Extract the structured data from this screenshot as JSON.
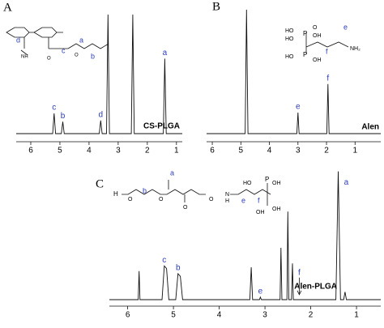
{
  "chart_data": [
    {
      "type": "line",
      "panel": "A",
      "sample": "CS-PLGA",
      "x": [
        6.5,
        5.25,
        5.2,
        5.15,
        4.95,
        4.9,
        4.85,
        3.65,
        3.6,
        3.55,
        3.4,
        3.35,
        3.3,
        2.55,
        2.5,
        2.45,
        1.45,
        1.4,
        1.35,
        0.8
      ],
      "values": [
        0,
        0,
        17,
        0,
        0,
        10,
        0,
        0,
        11,
        0,
        0,
        100,
        0,
        0,
        100,
        0,
        0,
        63,
        0,
        0
      ],
      "color": "#111111",
      "xlim": [
        6.5,
        0.8
      ],
      "ylim": [
        0,
        100
      ],
      "xticks": [
        6,
        5,
        4,
        3,
        2,
        1
      ],
      "annotations": [
        {
          "text": "c",
          "x": 5.2,
          "y": 17
        },
        {
          "text": "b",
          "x": 4.9,
          "y": 10
        },
        {
          "text": "d",
          "x": 3.6,
          "y": 11
        },
        {
          "text": "a",
          "x": 1.4,
          "y": 63
        }
      ],
      "structure_labels": [
        "d",
        "c",
        "b",
        "a",
        "NH",
        "O",
        "O"
      ]
    },
    {
      "type": "line",
      "panel": "B",
      "sample": "Alen",
      "x": [
        6.2,
        4.85,
        4.8,
        4.75,
        3.04,
        3.0,
        2.96,
        1.99,
        1.95,
        1.91,
        0.1
      ],
      "values": [
        0,
        0,
        100,
        0,
        0,
        17,
        0,
        0,
        40,
        0,
        0
      ],
      "color": "#111111",
      "xlim": [
        6.2,
        0.1
      ],
      "ylim": [
        0,
        100
      ],
      "xticks": [
        6,
        5,
        4,
        3,
        2,
        1
      ],
      "annotations": [
        {
          "text": "e",
          "x": 3.0,
          "y": 17
        },
        {
          "text": "f",
          "x": 1.95,
          "y": 40
        }
      ],
      "structure_labels": [
        "HO",
        "HO",
        "P",
        "O",
        "OH",
        "P",
        "HO",
        "OH",
        "f",
        "e",
        "NH₂"
      ]
    },
    {
      "type": "line",
      "panel": "C",
      "sample": "Alen-PLGA",
      "x": [
        6.4,
        5.77,
        5.75,
        5.73,
        5.25,
        5.2,
        5.15,
        5.1,
        4.95,
        4.9,
        4.85,
        4.8,
        3.33,
        3.3,
        3.27,
        3.12,
        3.1,
        3.08,
        2.67,
        2.65,
        2.63,
        2.52,
        2.5,
        2.48,
        2.42,
        2.4,
        2.38,
        1.45,
        1.4,
        1.35,
        1.28,
        1.25,
        1.22,
        0.47
      ],
      "values": [
        0,
        0,
        22,
        0,
        0,
        26,
        24,
        0,
        0,
        20,
        18,
        0,
        0,
        25,
        0,
        0,
        2,
        0,
        0,
        40,
        0,
        0,
        68,
        0,
        0,
        28,
        0,
        0,
        99,
        0,
        0,
        6,
        0,
        0
      ],
      "color": "#111111",
      "xlim": [
        6.4,
        0.47
      ],
      "ylim": [
        0,
        100
      ],
      "xticks": [
        6,
        5,
        4,
        3,
        2,
        1
      ],
      "annotations": [
        {
          "text": "c",
          "x": 5.2,
          "y": 26
        },
        {
          "text": "b",
          "x": 4.9,
          "y": 20
        },
        {
          "text": "e",
          "x": 3.1,
          "y": 2
        },
        {
          "text": "f",
          "x": 2.25,
          "y": 2,
          "arrow": true
        },
        {
          "text": "a",
          "x": 1.4,
          "y": 99
        }
      ],
      "structure_labels": [
        "H",
        "O",
        "b",
        "O",
        "a",
        "O",
        "O",
        "N",
        "H",
        "e",
        "f",
        "HO",
        "P",
        "OH",
        "OH",
        "OH"
      ]
    }
  ]
}
